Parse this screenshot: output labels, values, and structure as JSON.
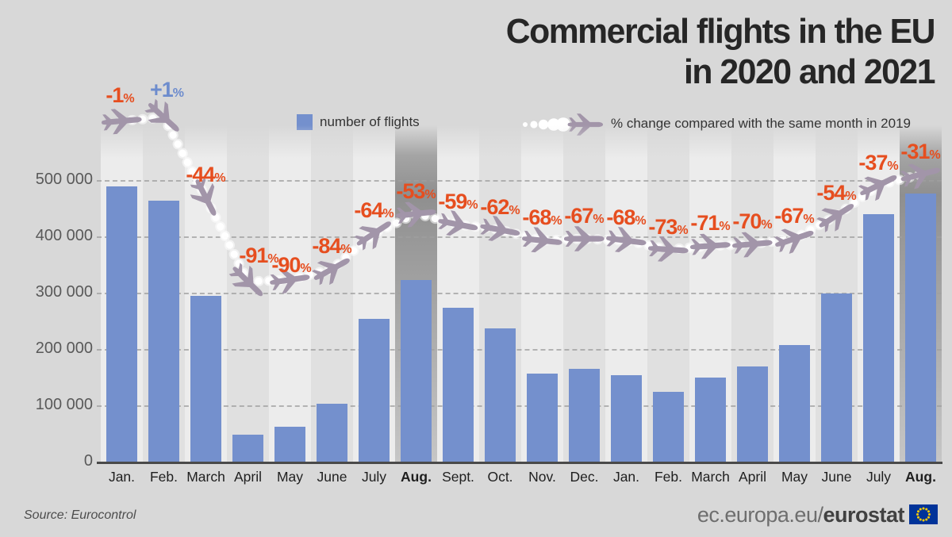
{
  "title": {
    "line1": "Commercial flights in the EU",
    "line2": "in 2020 and 2021"
  },
  "legend": {
    "bars_label": "number of flights",
    "line_label": "% change compared with the same month in 2019"
  },
  "footer": {
    "source": "Source: Eurocontrol",
    "site_regular": "ec.europa.eu/",
    "site_bold": "eurostat"
  },
  "colors": {
    "background": "#d8d8d8",
    "bar": "#7490cd",
    "pct_negative": "#e64e1f",
    "pct_positive": "#6d8ccd",
    "plane": "#a295a9",
    "trail": "#ffffff",
    "band_light": "#ececec",
    "band_dark": "#e0e0e0",
    "band_highlight": "#8f8f8f",
    "axis": "#4a4a4a",
    "eu_flag_blue": "#003399",
    "eu_flag_stars": "#ffcc00"
  },
  "chart_data": {
    "type": "bar",
    "title": "Commercial flights in the EU in 2020 and 2021",
    "categories": [
      "Jan.",
      "Feb.",
      "March",
      "April",
      "May",
      "June",
      "July",
      "Aug.",
      "Sept.",
      "Oct.",
      "Nov.",
      "Dec.",
      "Jan.",
      "Feb.",
      "March",
      "April",
      "May",
      "June",
      "July",
      "Aug."
    ],
    "highlighted_category_indices": [
      7,
      19
    ],
    "series": [
      {
        "name": "number of flights",
        "type": "bar",
        "values": [
          490000,
          465000,
          296000,
          50000,
          63000,
          104000,
          255000,
          324000,
          274000,
          238000,
          158000,
          166000,
          155000,
          125000,
          151000,
          171000,
          208000,
          300000,
          441000,
          477000
        ]
      },
      {
        "name": "% change compared with the same month in 2019",
        "type": "line-pictorial-planes",
        "values": [
          -1,
          1,
          -44,
          -91,
          -90,
          -84,
          -64,
          -53,
          -59,
          -62,
          -68,
          -67,
          -68,
          -73,
          -71,
          -70,
          -67,
          -54,
          -37,
          -31
        ],
        "labels": [
          "-1",
          "+1",
          "-44",
          "-91",
          "-90",
          "-84",
          "-64",
          "-53",
          "-59",
          "-62",
          "-68",
          "-67",
          "-68",
          "-73",
          "-71",
          "-70",
          "-67",
          "-54",
          "-37",
          "-31"
        ],
        "label_suffix": "%"
      }
    ],
    "yticks": {
      "labels": [
        "500 000",
        "400 000",
        "300 000",
        "200 000",
        "100 000",
        "0"
      ],
      "values": [
        500000,
        400000,
        300000,
        200000,
        100000,
        0
      ]
    },
    "ylim": [
      0,
      560000
    ],
    "grid": "horizontal-dashed",
    "legend_position": "top"
  }
}
